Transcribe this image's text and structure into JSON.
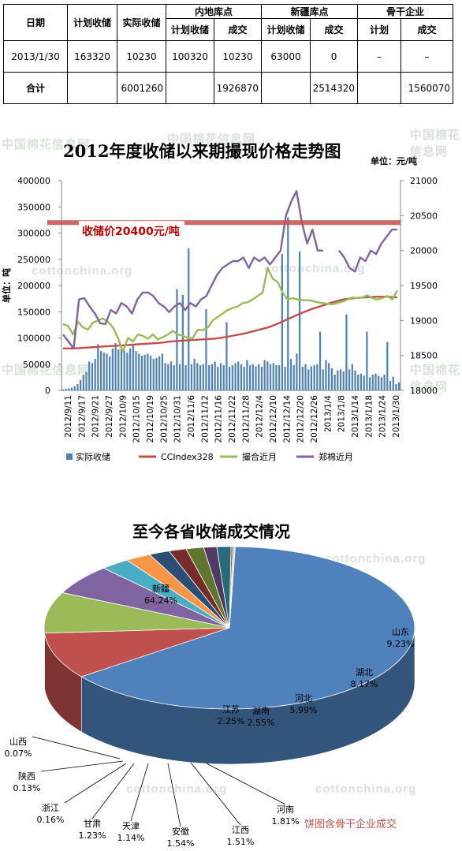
{
  "table": {
    "header_row1": [
      "日期",
      "计划收储",
      "实际收储",
      "内地库点",
      "新疆库点",
      "骨干企业"
    ],
    "header_row2": [
      "计划收储",
      "成交",
      "计划收储",
      "成交",
      "计划",
      "成交"
    ],
    "row1": [
      "2013/1/30",
      "163320",
      "10230",
      "100320",
      "10230",
      "63000",
      "0",
      "–",
      "–"
    ],
    "row2": [
      "合计",
      "",
      "6001260",
      "",
      "1926870",
      "",
      "2514320",
      "",
      "1560070"
    ]
  },
  "watermarks": [
    "中国棉花信息网",
    "cottonchina.org"
  ],
  "chart1": {
    "title": "2012年度收储以来期撮现价格走势图",
    "unit_right": "单位：元/吨",
    "unit_left": "单位：吨",
    "ref_label": "收储价20400元/吨",
    "colors": {
      "bar": "#4f81bd",
      "cc": "#c0504d",
      "spot": "#9bbb59",
      "zz": "#8064a2",
      "ref": "#c0504d"
    }
  },
  "chart_data": [
    {
      "type": "bar+line",
      "title": "2012年度收储以来期撮现价格走势图",
      "ylabel_left": "单位：吨",
      "ylabel_right": "单位：元/吨",
      "yleft_range": [
        0,
        400000
      ],
      "yleft_ticks": [
        "0",
        "50000",
        "100000",
        "150000",
        "200000",
        "250000",
        "300000",
        "350000",
        "400000"
      ],
      "yright_range": [
        18000,
        21000
      ],
      "yright_ticks": [
        "18000",
        "18500",
        "19000",
        "19500",
        "20000",
        "20500",
        "21000"
      ],
      "x_ticks": [
        "2012/9/11",
        "2012/9/17",
        "2012/9/21",
        "2012/9/27",
        "2012/10/9",
        "2012/10/15",
        "2012/10/19",
        "2012/10/25",
        "2012/10/31",
        "2012/11/6",
        "2012/11/12",
        "2012/11/16",
        "2012/11/22",
        "2012/11/28",
        "2012/12/4",
        "2012/12/10",
        "2012/12/14",
        "2012/12/20",
        "2012/12/26",
        "2013/1/4",
        "2013/1/8",
        "2013/1/14",
        "2013/1/18",
        "2013/1/24",
        "2013/1/30"
      ],
      "reference_line": {
        "label": "收储价20400元/吨",
        "value": 20400
      },
      "legend": [
        "实际收储",
        "CCIndex328",
        "撮合近月",
        "郑棉近月"
      ],
      "legend_position": "bottom",
      "series": [
        {
          "name": "实际收储",
          "axis": "left",
          "kind": "bar",
          "values": [
            2000,
            3000,
            4000,
            5000,
            8000,
            12000,
            20000,
            30000,
            35000,
            55000,
            52000,
            60000,
            88000,
            75000,
            72000,
            70000,
            65000,
            80000,
            90000,
            78000,
            85000,
            75000,
            72000,
            80000,
            88000,
            75000,
            70000,
            66000,
            68000,
            70000,
            66000,
            60000,
            62000,
            65000,
            70000,
            52000,
            50000,
            55000,
            48000,
            193000,
            50000,
            182000,
            48000,
            271000,
            50000,
            60000,
            52000,
            48000,
            50000,
            155000,
            48000,
            50000,
            55000,
            45000,
            52000,
            48000,
            130000,
            45000,
            48000,
            52000,
            55000,
            50000,
            45000,
            58000,
            48000,
            50000,
            46000,
            50000,
            45000,
            58000,
            55000,
            50000,
            52000,
            48000,
            48000,
            260000,
            45000,
            330000,
            60000,
            48000,
            70000,
            265000,
            45000,
            50000,
            40000,
            46000,
            48000,
            50000,
            112000,
            40000,
            58000,
            52000,
            42000,
            30000,
            38000,
            40000,
            36000,
            145000,
            40000,
            50000,
            38000,
            30000,
            32000,
            28000,
            112000,
            25000,
            30000,
            32000,
            28000,
            25000,
            30000,
            92000,
            18000,
            26000,
            12000,
            15000
          ]
        },
        {
          "name": "CCIndex328",
          "axis": "right",
          "kind": "line",
          "values": [
            18600,
            18600,
            18610,
            18620,
            18630,
            18640,
            18650,
            18660,
            18670,
            18680,
            18700,
            18710,
            18720,
            18730,
            18740,
            18760,
            18790,
            18820,
            18860,
            18900,
            18960,
            19030,
            19100,
            19160,
            19210,
            19260,
            19300,
            19320,
            19330,
            19340,
            19340,
            19330
          ]
        },
        {
          "name": "撮合近月",
          "axis": "right",
          "kind": "line",
          "values": [
            18950,
            18920,
            18800,
            18980,
            18900,
            18870,
            18970,
            19000,
            19030,
            18980,
            18900,
            18750,
            18550,
            18750,
            18700,
            18800,
            18780,
            18740,
            18800,
            18730,
            18760,
            18800,
            18850,
            18800,
            18780,
            18750,
            18750,
            18870,
            18860,
            18900,
            19000,
            19050,
            19100,
            19150,
            19180,
            19200,
            19250,
            19260,
            19300,
            19350,
            19400,
            19750,
            19600,
            19550,
            19400,
            19300,
            19320,
            19300,
            19290,
            19290,
            19280,
            19260,
            19250,
            19240,
            19230,
            19250,
            19270,
            19300,
            19330,
            19320,
            19330,
            19360,
            19320,
            19300,
            19320,
            19350,
            19300,
            19430
          ]
        },
        {
          "name": "郑棉近月",
          "axis": "right",
          "kind": "line",
          "values": [
            18800,
            18700,
            18600,
            19300,
            19320,
            19200,
            19100,
            18960,
            18950,
            19150,
            19100,
            19250,
            19200,
            19100,
            19300,
            19400,
            19400,
            19350,
            19250,
            19200,
            19120,
            19200,
            19250,
            19150,
            19250,
            19200,
            19300,
            19350,
            19500,
            19650,
            19750,
            19800,
            19850,
            19850,
            19900,
            19750,
            19900,
            19850,
            19900,
            19800,
            19900,
            20000,
            20500,
            20700,
            20850,
            20400,
            20100,
            20300,
            20000,
            20000,
            null,
            null,
            20000,
            19900,
            19750,
            19700,
            19900,
            19850,
            20000,
            19950,
            20100,
            20200,
            20300,
            20300
          ]
        }
      ]
    },
    {
      "type": "pie",
      "title": "至今各省收储成交情况",
      "note": "饼图含骨干企业成交",
      "slices": [
        {
          "label": "新疆",
          "value": 64.24,
          "percent": "64.24%",
          "color": "#4f81bd"
        },
        {
          "label": "山东",
          "value": 9.23,
          "percent": "9.23%",
          "color": "#c0504d"
        },
        {
          "label": "湖北",
          "value": 8.17,
          "percent": "8.17%",
          "color": "#9bbb59"
        },
        {
          "label": "河北",
          "value": 5.99,
          "percent": "5.99%",
          "color": "#8064a2"
        },
        {
          "label": "湖南",
          "value": 2.55,
          "percent": "2.55%",
          "color": "#4bacc6"
        },
        {
          "label": "江苏",
          "value": 2.25,
          "percent": "2.25%",
          "color": "#f79646"
        },
        {
          "label": "河南",
          "value": 1.81,
          "percent": "1.81%",
          "color": "#2c4d75"
        },
        {
          "label": "江西",
          "value": 1.51,
          "percent": "1.51%",
          "color": "#772c2a"
        },
        {
          "label": "安徽",
          "value": 1.54,
          "percent": "1.54%",
          "color": "#5f7530"
        },
        {
          "label": "天津",
          "value": 1.14,
          "percent": "1.14%",
          "color": "#4d3b62"
        },
        {
          "label": "甘肃",
          "value": 1.23,
          "percent": "1.23%",
          "color": "#276a7c"
        },
        {
          "label": "浙江",
          "value": 0.16,
          "percent": "0.16%",
          "color": "#b65708"
        },
        {
          "label": "陕西",
          "value": 0.13,
          "percent": "0.13%",
          "color": "#729aca"
        },
        {
          "label": "山西",
          "value": 0.07,
          "percent": "0.07%",
          "color": "#cd7371"
        }
      ]
    }
  ]
}
